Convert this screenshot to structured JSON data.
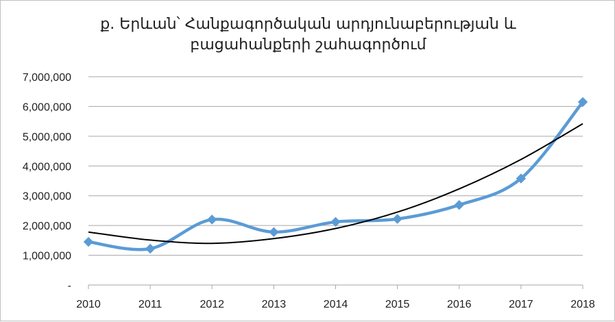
{
  "chart_data": {
    "type": "line",
    "title_lines": [
      "ք. Երևան՝ Հանքագործական արդյունաբերության և",
      "բացահանքերի շահագործում"
    ],
    "x": [
      2010,
      2011,
      2012,
      2013,
      2014,
      2015,
      2016,
      2017,
      2018
    ],
    "series": [
      {
        "values": [
          1450000,
          1220000,
          2200000,
          1780000,
          2120000,
          2220000,
          2690000,
          3580000,
          6150000
        ],
        "color": "#5b9bd5",
        "marker": "diamond",
        "smooth": true
      }
    ],
    "trendline": {
      "type": "polynomial",
      "values": [
        1780000,
        1510000,
        1400000,
        1560000,
        1900000,
        2450000,
        3230000,
        4220000,
        5420000
      ],
      "color": "#000000"
    },
    "ylim": [
      0,
      7000000
    ],
    "yticks": [
      0,
      1000000,
      2000000,
      3000000,
      4000000,
      5000000,
      6000000,
      7000000
    ],
    "ytick_labels": [
      "-",
      "1,000,000",
      "2,000,000",
      "3,000,000",
      "4,000,000",
      "5,000,000",
      "6,000,000",
      "7,000,000"
    ],
    "grid": true
  }
}
